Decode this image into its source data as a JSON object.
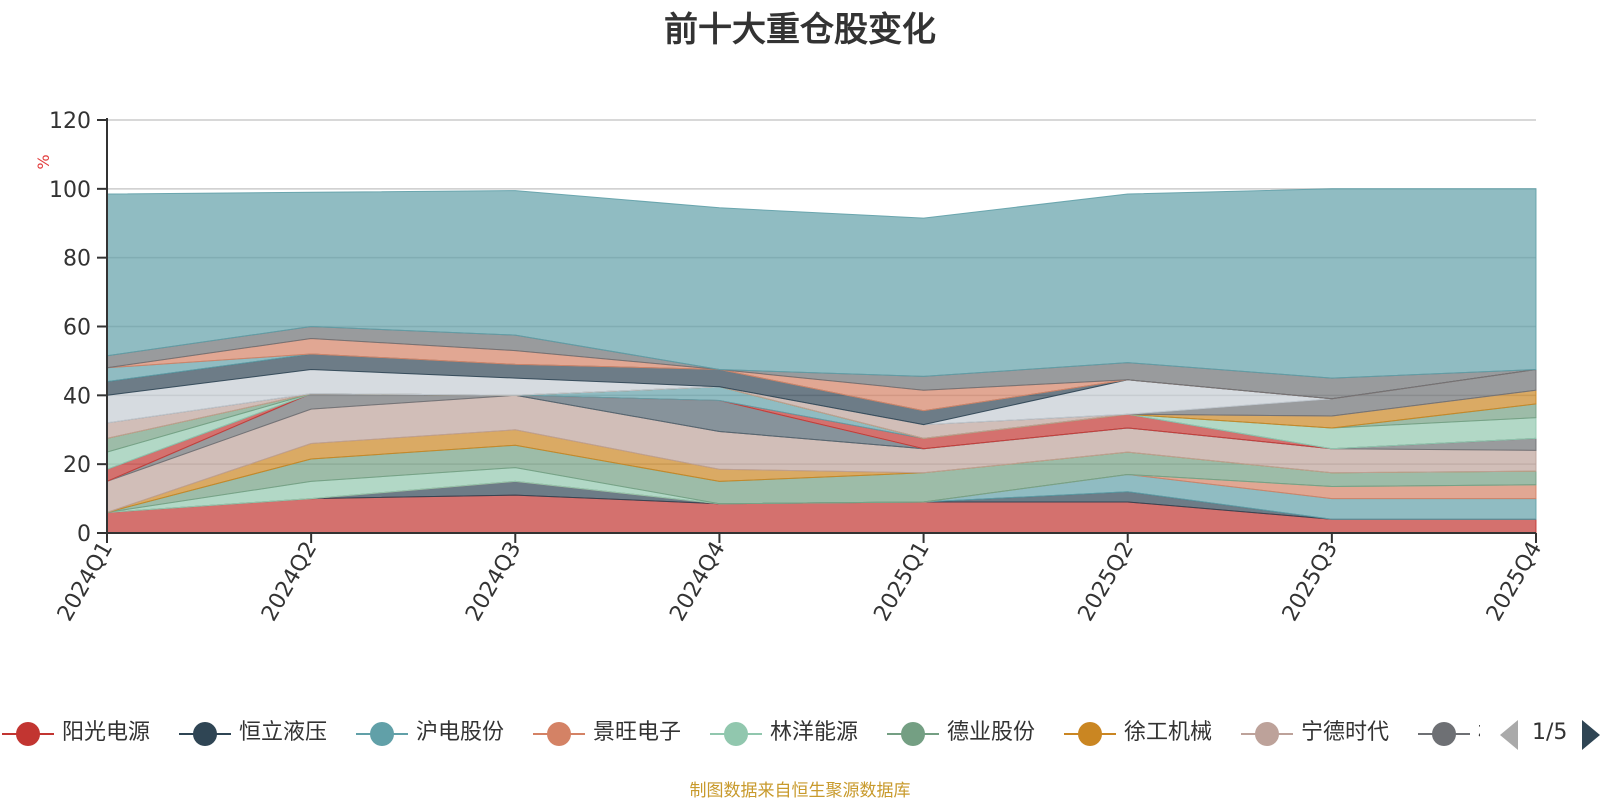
{
  "title": "前十大重仓股变化",
  "footer": "制图数据来自恒生聚源数据库",
  "pager": {
    "text": "1/5"
  },
  "chart_data": {
    "type": "area",
    "stacked": true,
    "x": [
      "2024Q1",
      "2024Q2",
      "2024Q3",
      "2024Q4",
      "2025Q1",
      "2025Q2",
      "2025Q3",
      "2025Q4"
    ],
    "ylabel": "%",
    "ylim": [
      0,
      120
    ],
    "yticks": [
      0,
      20,
      40,
      60,
      80,
      100,
      120
    ],
    "grid": true,
    "legend_position": "bottom",
    "series": [
      {
        "name": "阳光电源",
        "color": "#c23531",
        "values": [
          6,
          10,
          11,
          8.5,
          9,
          9,
          4,
          4
        ]
      },
      {
        "name": "恒立液压",
        "color": "#2f4554",
        "values": [
          0,
          0,
          4,
          0,
          0,
          3,
          0,
          0
        ]
      },
      {
        "name": "沪电股份",
        "color": "#61a0a8",
        "values": [
          0,
          0,
          0,
          0,
          0,
          5,
          6,
          6
        ]
      },
      {
        "name": "景旺电子",
        "color": "#d48265",
        "values": [
          0,
          0,
          0,
          0,
          0,
          0,
          3.5,
          4
        ]
      },
      {
        "name": "林洋能源",
        "color": "#91c7ae",
        "values": [
          0,
          5,
          4,
          0,
          0,
          0,
          0,
          0
        ]
      },
      {
        "name": "德业股份",
        "color": "#749f83",
        "values": [
          0,
          6.5,
          6.5,
          6.5,
          8.5,
          6.5,
          4,
          4
        ]
      },
      {
        "name": "徐工机械",
        "color": "#ca8622",
        "values": [
          0,
          4.5,
          4.5,
          3.5,
          0,
          0,
          0,
          0
        ]
      },
      {
        "name": "宁德时代",
        "color": "#bda29a",
        "values": [
          9,
          10,
          10,
          11,
          7,
          7,
          7,
          6
        ]
      },
      {
        "name": "格力电器",
        "color": "#6e7074",
        "values": [
          0,
          4.5,
          0,
          0,
          0,
          0,
          0,
          3.5
        ]
      },
      {
        "name": "",
        "color": "#546570",
        "values": [
          0,
          0,
          0,
          9,
          0,
          0,
          0,
          0
        ]
      },
      {
        "name": "",
        "color": "#c4ccd3",
        "values": [
          0,
          0,
          0,
          0,
          0,
          0,
          0,
          0
        ]
      },
      {
        "name": "",
        "color": "#c23531",
        "values": [
          3.5,
          0,
          0,
          0,
          3,
          4,
          0,
          0
        ]
      },
      {
        "name": "",
        "color": "#61a0a8",
        "values": [
          0,
          0,
          0,
          4,
          0,
          0,
          0,
          0
        ]
      },
      {
        "name": "",
        "color": "#91c7ae",
        "values": [
          5,
          0,
          0,
          0,
          0,
          0,
          6,
          6
        ]
      },
      {
        "name": "",
        "color": "#749f83",
        "values": [
          4,
          0,
          0,
          0,
          0,
          0,
          0,
          4
        ]
      },
      {
        "name": "",
        "color": "#ca8622",
        "values": [
          0,
          0,
          0,
          0,
          0,
          0,
          3.5,
          4
        ]
      },
      {
        "name": "",
        "color": "#bda29a",
        "values": [
          4.5,
          0,
          0,
          0,
          4,
          0,
          0,
          0
        ]
      },
      {
        "name": "",
        "color": "#6e7074",
        "values": [
          0,
          0,
          0,
          0,
          0,
          0,
          5,
          6
        ]
      },
      {
        "name": "",
        "color": "#c4ccd3",
        "values": [
          8,
          7,
          5,
          0,
          0,
          10,
          0,
          0
        ]
      },
      {
        "name": "",
        "color": "#2f4554",
        "values": [
          4,
          4.5,
          4,
          5,
          4,
          0,
          0,
          0
        ]
      },
      {
        "name": "",
        "color": "#61a0a8",
        "values": [
          4,
          0,
          0,
          0,
          0,
          0,
          0,
          0
        ]
      },
      {
        "name": "",
        "color": "#d48265",
        "values": [
          0,
          4.5,
          4,
          0,
          6,
          0,
          0,
          0
        ]
      },
      {
        "name": "",
        "color": "#6e7074",
        "values": [
          3.5,
          3.5,
          4.5,
          0,
          4,
          5,
          6,
          0
        ]
      },
      {
        "name": "",
        "color": "#61a0a8",
        "values": [
          47,
          39,
          42,
          47,
          46,
          49,
          55,
          52.5
        ]
      }
    ]
  }
}
